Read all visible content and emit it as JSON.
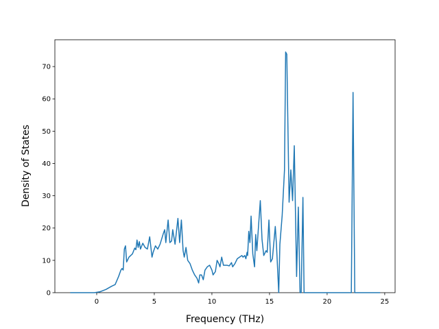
{
  "chart_data": {
    "type": "line",
    "xlabel": "Frequency (THz)",
    "ylabel": "Density of States",
    "xlim": [
      -3.63,
      25.9
    ],
    "ylim": [
      0,
      78.3
    ],
    "xticks": [
      0,
      5,
      10,
      15,
      20,
      25
    ],
    "yticks": [
      0,
      10,
      20,
      30,
      40,
      50,
      60,
      70
    ],
    "series": [
      {
        "color": "#1f77b4",
        "x": [
          -2.3,
          -0.2,
          0.3,
          0.8,
          1.3,
          1.6,
          1.9,
          2.1,
          2.2,
          2.3,
          2.4,
          2.5,
          2.6,
          2.8,
          3.1,
          3.3,
          3.4,
          3.5,
          3.6,
          3.7,
          3.8,
          4.0,
          4.2,
          4.4,
          4.6,
          4.8,
          4.9,
          5.1,
          5.3,
          5.5,
          5.8,
          5.9,
          6.0,
          6.2,
          6.35,
          6.5,
          6.6,
          6.8,
          7.05,
          7.2,
          7.35,
          7.5,
          7.6,
          7.75,
          7.9,
          8.1,
          8.3,
          8.5,
          8.7,
          8.85,
          8.95,
          9.1,
          9.25,
          9.4,
          9.6,
          9.8,
          10.0,
          10.1,
          10.3,
          10.45,
          10.6,
          10.7,
          10.85,
          11.0,
          11.3,
          11.5,
          11.7,
          11.8,
          12.0,
          12.2,
          12.4,
          12.6,
          12.7,
          12.85,
          12.95,
          13.05,
          13.1,
          13.2,
          13.3,
          13.4,
          13.55,
          13.7,
          13.8,
          13.9,
          14.2,
          14.35,
          14.5,
          14.7,
          14.8,
          14.95,
          15.1,
          15.25,
          15.5,
          15.6,
          15.8,
          15.9,
          16.1,
          16.3,
          16.4,
          16.5,
          16.7,
          16.85,
          17.0,
          17.15,
          17.35,
          17.5,
          17.65,
          17.75,
          17.9,
          18.0,
          22.1,
          22.25,
          22.4,
          24.6
        ],
        "values": [
          0,
          0,
          0.3,
          1,
          2,
          2.5,
          5,
          7,
          7.5,
          7,
          13.5,
          14.5,
          9.5,
          11,
          12,
          13.8,
          13.3,
          16.3,
          14,
          15.8,
          13.5,
          15.3,
          14,
          13.5,
          17.3,
          11,
          12.5,
          14.5,
          13.5,
          15,
          18.5,
          19.5,
          15.5,
          22.5,
          15.5,
          16,
          19.5,
          15,
          23,
          15.5,
          22.5,
          13,
          11,
          14,
          10,
          9,
          7,
          5.5,
          4.5,
          3,
          5.5,
          5.5,
          4,
          7,
          8,
          8.5,
          7,
          5.5,
          6.5,
          10,
          9,
          8,
          11,
          8.5,
          8.5,
          8.3,
          9.3,
          8,
          9,
          10.5,
          11,
          11.5,
          11,
          11.5,
          10.5,
          12.5,
          11.5,
          19,
          15.5,
          23.7,
          12,
          8,
          18,
          13,
          28.5,
          16.5,
          11.5,
          13,
          12.5,
          22.5,
          9.5,
          10.5,
          20.5,
          15,
          0,
          15,
          24,
          38,
          74.5,
          73.8,
          28,
          38,
          28.5,
          45.5,
          5,
          26.5,
          0,
          0,
          29.5,
          0,
          0,
          62,
          0,
          0
        ]
      }
    ]
  }
}
